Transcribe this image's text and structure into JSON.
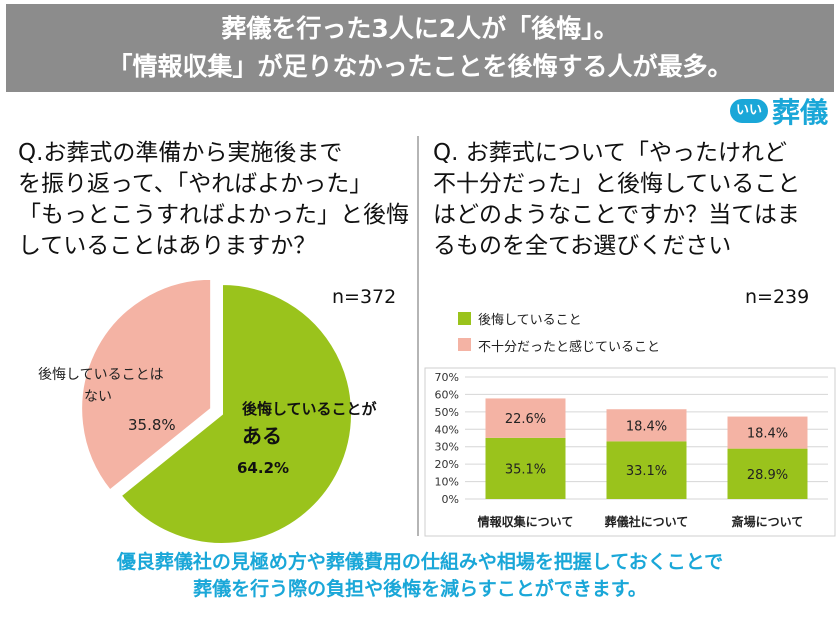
{
  "banner": {
    "line1": "葬儀を行った3人に2人が「後悔」。",
    "line2": "「情報収集」が足りなかったことを後悔する人が最多。"
  },
  "logo": {
    "badge": "いい",
    "text": "葬儀"
  },
  "left": {
    "question_lines": [
      "Q.お葬式の準備から実施後まで",
      "を振り返って、「やればよかった」",
      "「もっとこうすればよかった」と後悔",
      "していることはありますか？"
    ],
    "n_label": "n=372"
  },
  "right": {
    "question_lines": [
      "Q. お葬式について「やったけれど",
      "不十分だった」と後悔していること",
      "はどのようなことですか？当てはま",
      "るものを全てお選びください"
    ],
    "n_label": "n=239"
  },
  "footer": {
    "line1": "優良葬儀社の見極め方や葬儀費用の仕組みや相場を把握しておくことで",
    "line2": "葬儀を行う際の負担や後悔を減らすことができます。"
  },
  "colors": {
    "green": "#9ac31c",
    "pink": "#f4b3a4",
    "accent": "#1aa7d8",
    "banner": "#8c8c8c"
  },
  "chart_data": [
    {
      "type": "pie",
      "slices": [
        {
          "label_lines": [
            "後悔していることが",
            "ある"
          ],
          "value": 64.2,
          "value_label": "64.2%",
          "color": "#9ac31c"
        },
        {
          "label_lines": [
            "後悔していることは",
            "ない"
          ],
          "value": 35.8,
          "value_label": "35.8%",
          "color": "#f4b3a4"
        }
      ]
    },
    {
      "type": "bar",
      "stacked": true,
      "categories": [
        "情報収集について",
        "葬儀社について",
        "斎場について"
      ],
      "series": [
        {
          "name": "後悔していること",
          "values": [
            35.1,
            33.1,
            28.9
          ],
          "labels": [
            "35.1%",
            "33.1%",
            "28.9%"
          ],
          "color": "#9ac31c"
        },
        {
          "name": "不十分だったと感じていること",
          "values": [
            22.6,
            18.4,
            18.4
          ],
          "labels": [
            "22.6%",
            "18.4%",
            "18.4%"
          ],
          "color": "#f4b3a4"
        }
      ],
      "ylim": [
        0,
        70
      ],
      "yticks": [
        "0%",
        "10%",
        "20%",
        "30%",
        "40%",
        "50%",
        "60%",
        "70%"
      ],
      "legend": "top-left",
      "grid": true
    }
  ]
}
